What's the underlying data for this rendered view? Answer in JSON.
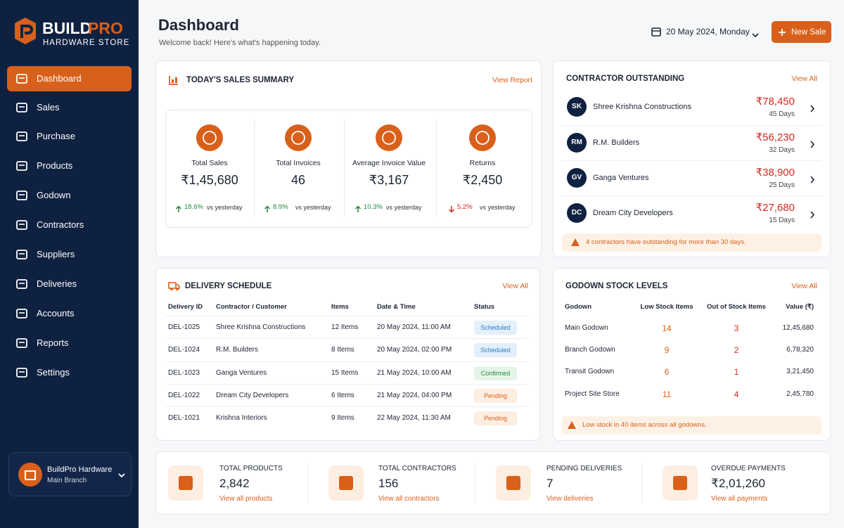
{
  "brand": {
    "name_a": "BUILD",
    "name_b": "PRO",
    "subtitle": "HARDWARE STORE"
  },
  "nav": [
    "Dashboard",
    "Sales",
    "Purchase",
    "Products",
    "Godown",
    "Contractors",
    "Suppliers",
    "Deliveries",
    "Accounts",
    "Reports",
    "Settings"
  ],
  "store": {
    "name": "BuildPro Hardware",
    "branch": "Main Branch"
  },
  "header": {
    "title": "Dashboard",
    "subtitle": "Welcome back! Here's what's happening today.",
    "date": "20 May 2024, Monday",
    "button": "New Sale"
  },
  "sales_summary": {
    "title": "TODAY'S SALES SUMMARY",
    "link": "View Report",
    "metrics": [
      {
        "label": "Total Sales",
        "value": "₹1,45,680",
        "change": "18.6%",
        "note": "vs yesterday",
        "direction": "up"
      },
      {
        "label": "Total Invoices",
        "value": "46",
        "change": "8.9%",
        "note": "vs yesterday",
        "direction": "up"
      },
      {
        "label": "Average Invoice Value",
        "value": "₹3,167",
        "change": "10.3%",
        "note": "vs yesterday",
        "direction": "up"
      },
      {
        "label": "Returns",
        "value": "₹2,450",
        "change": "5.2%",
        "note": "vs yesterday",
        "direction": "down"
      }
    ]
  },
  "contractors": {
    "title": "CONTRACTOR OUTSTANDING",
    "link": "View All",
    "rows": [
      {
        "initials": "SK",
        "name": "Shree Krishna Constructions",
        "amount": "₹78,450",
        "days": "45 Days"
      },
      {
        "initials": "RM",
        "name": "R.M. Builders",
        "amount": "₹56,230",
        "days": "32 Days"
      },
      {
        "initials": "GV",
        "name": "Ganga Ventures",
        "amount": "₹38,900",
        "days": "25 Days"
      },
      {
        "initials": "DC",
        "name": "Dream City Developers",
        "amount": "₹27,680",
        "days": "15 Days"
      }
    ],
    "alert": "4 contractors have outstanding for more than 30 days."
  },
  "deliveries": {
    "title": "DELIVERY SCHEDULE",
    "link": "View All",
    "columns": [
      "Delivery ID",
      "Contractor / Customer",
      "Items",
      "Date & Time",
      "Status"
    ],
    "rows": [
      {
        "cells": [
          "DEL-1025",
          "Shree Krishna Constructions",
          "12 Items",
          "20 May 2024, 11:00 AM",
          "Scheduled"
        ],
        "status_color": "#2b7bc0",
        "status_bg": "#e3f0fb"
      },
      {
        "cells": [
          "DEL-1024",
          "R.M. Builders",
          "8 Items",
          "20 May 2024, 02:00 PM",
          "Scheduled"
        ],
        "status_color": "#2b7bc0",
        "status_bg": "#e3f0fb"
      },
      {
        "cells": [
          "DEL-1023",
          "Ganga Ventures",
          "15 Items",
          "21 May 2024, 10:00 AM",
          "Confirmed"
        ],
        "status_color": "#2e8b45",
        "status_bg": "#e4f4e8"
      },
      {
        "cells": [
          "DEL-1022",
          "Dream City Developers",
          "6 Items",
          "21 May 2024, 04:00 PM",
          "Pending"
        ],
        "status_color": "#d9601a",
        "status_bg": "#fdeee2"
      },
      {
        "cells": [
          "DEL-1021",
          "Krishna Interiors",
          "9 Items",
          "22 May 2024, 11:30 AM",
          "Pending"
        ],
        "status_color": "#d9601a",
        "status_bg": "#fdeee2"
      }
    ]
  },
  "godown": {
    "title": "GODOWN STOCK LEVELS",
    "link": "View All",
    "columns": [
      "Godown",
      "Low Stock Items",
      "Out of Stock Items",
      "Value (₹)"
    ],
    "rows": [
      [
        "Main Godown",
        "14",
        "3",
        "12,45,680"
      ],
      [
        "Branch Godown",
        "9",
        "2",
        "6,78,320"
      ],
      [
        "Transit Godown",
        "6",
        "1",
        "3,21,450"
      ],
      [
        "Project Site Store",
        "11",
        "4",
        "2,45,780"
      ]
    ],
    "alert": "Low stock in 40 items across all godowns."
  },
  "stats": [
    {
      "label": "TOTAL PRODUCTS",
      "value": "2,842",
      "link": "View all products"
    },
    {
      "label": "TOTAL CONTRACTORS",
      "value": "156",
      "link": "View all contractors"
    },
    {
      "label": "PENDING DELIVERIES",
      "value": "7",
      "link": "View deliveries"
    },
    {
      "label": "OVERDUE PAYMENTS",
      "value": "₹2,01,260",
      "link": "View all payments"
    }
  ]
}
